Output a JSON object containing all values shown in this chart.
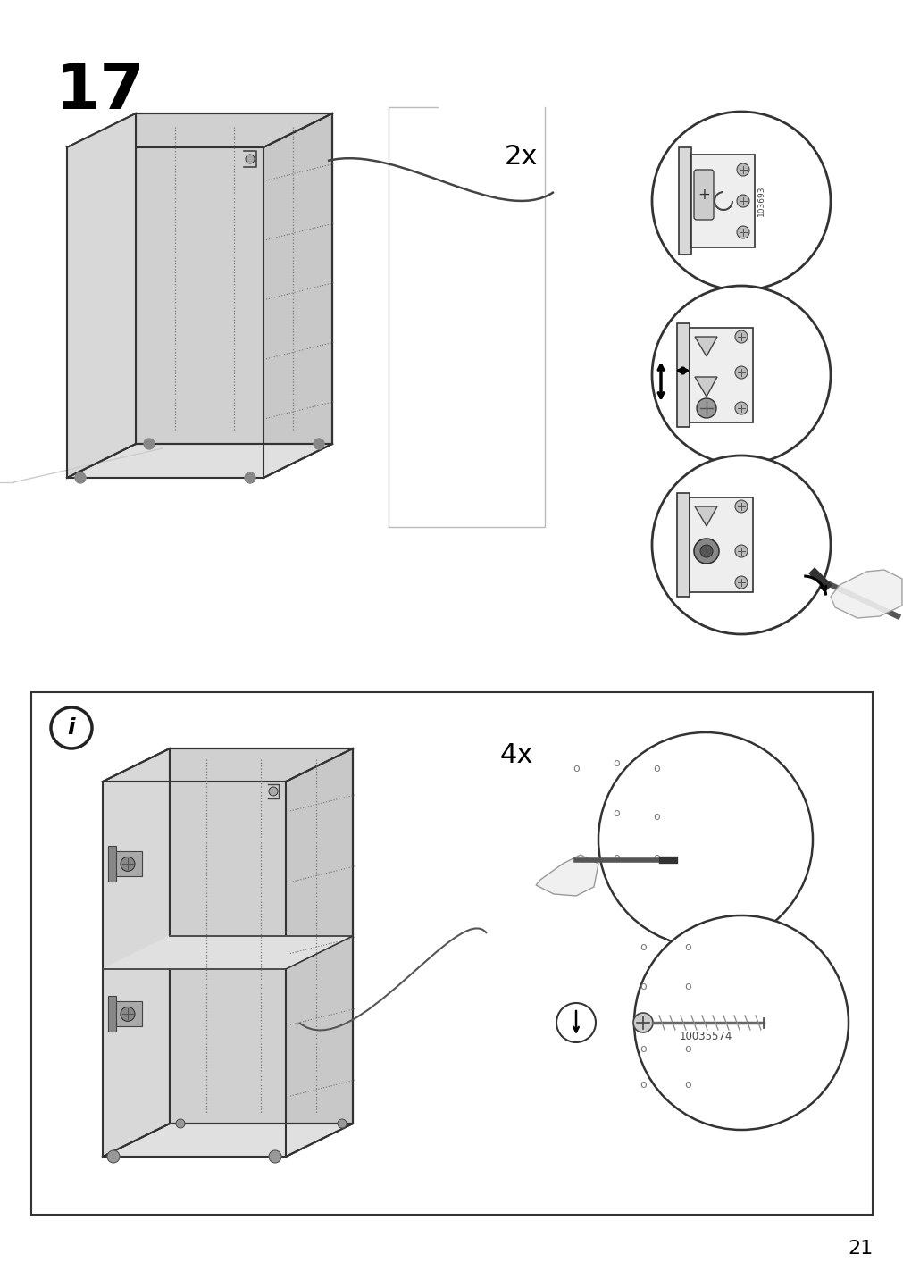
{
  "page_number": "21",
  "step_number": "17",
  "background_color": "#ffffff",
  "line_color": "#000000",
  "light_line_color": "#888888",
  "step1_label": "2x",
  "step2_label": "4x",
  "part_number_1": "103693",
  "part_number_2": "10035574",
  "info_label": "i",
  "cabinet_fill_top": "#e8e8e8",
  "cabinet_fill_back": "#d0d0d0",
  "cabinet_fill_right": "#c8c8c8",
  "cabinet_fill_left": "#d8d8d8",
  "cabinet_fill_front": "#f0f0f0",
  "cabinet_fill_bottom": "#e0e0e0",
  "lc": "#333333",
  "dot_color": "#666666"
}
